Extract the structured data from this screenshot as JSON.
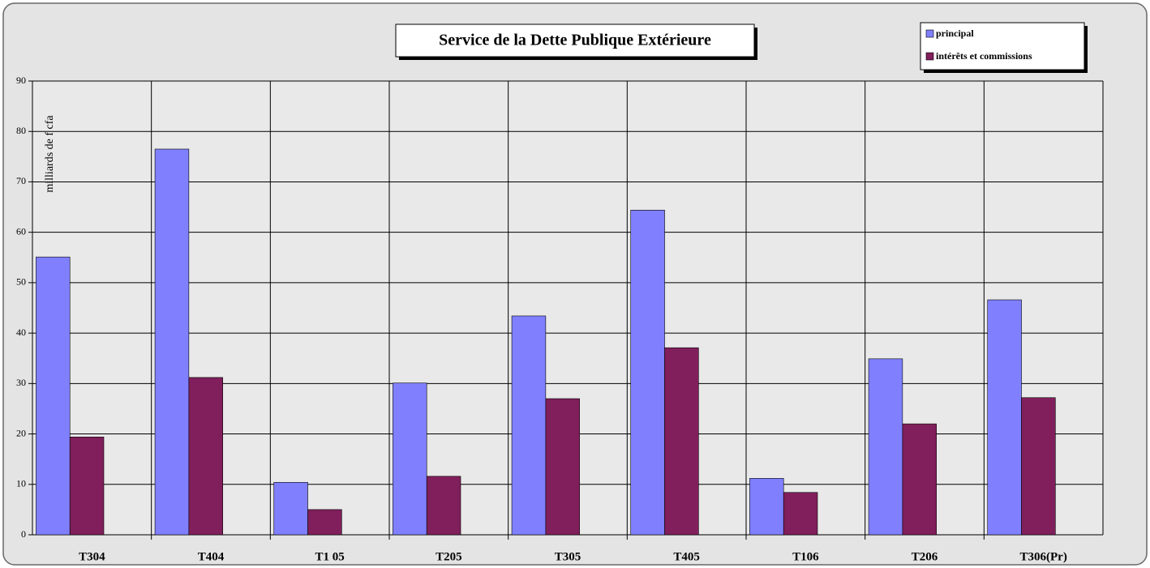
{
  "chart_data": {
    "type": "bar",
    "title": "Service de  la Dette Publique Extérieure",
    "y_label": "milliards de f cfa",
    "categories": [
      "T304",
      "T404",
      "T1 05",
      "T205",
      "T305",
      "T405",
      "T106",
      "T206",
      "T306(Pr)"
    ],
    "series": [
      {
        "name": "principal",
        "color": "#8080ff",
        "values": [
          55.1,
          76.5,
          10.4,
          30.1,
          43.4,
          64.4,
          11.2,
          34.9,
          46.6
        ]
      },
      {
        "name": "intérêts et commissions",
        "color": "#801f5b",
        "values": [
          19.4,
          31.2,
          5.0,
          11.6,
          27.0,
          37.1,
          8.4,
          22.0,
          27.2
        ]
      }
    ],
    "ylim": [
      0,
      90
    ],
    "yticks": [
      0,
      10,
      20,
      30,
      40,
      50,
      60,
      70,
      80,
      90
    ],
    "grid": true,
    "legend": "top-right"
  }
}
